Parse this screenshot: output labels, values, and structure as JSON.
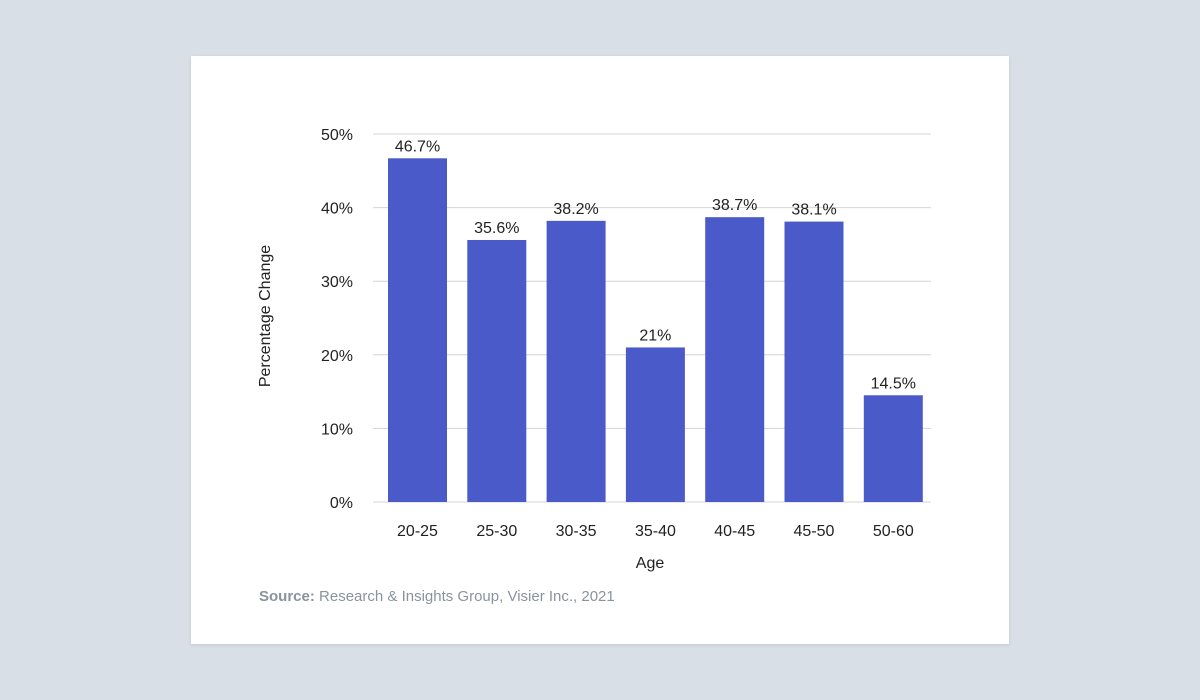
{
  "chart_data": {
    "type": "bar",
    "categories": [
      "20-25",
      "25-30",
      "30-35",
      "35-40",
      "40-45",
      "45-50",
      "50-60"
    ],
    "values": [
      46.7,
      35.6,
      38.2,
      21,
      38.7,
      38.1,
      14.5
    ],
    "data_labels": [
      "46.7%",
      "35.6%",
      "38.2%",
      "21%",
      "38.7%",
      "38.1%",
      "14.5%"
    ],
    "title": "",
    "xlabel": "Age",
    "ylabel": "Percentage Change",
    "ylim": [
      0,
      50
    ],
    "yticks": [
      0,
      10,
      20,
      30,
      40,
      50
    ],
    "ytick_labels": [
      "0%",
      "10%",
      "20%",
      "30%",
      "40%",
      "50%"
    ],
    "grid": true,
    "legend": "none",
    "bar_color": "#4a5bc9",
    "grid_color": "#d4d4d4"
  },
  "source": {
    "prefix": "Source:",
    "text": "Research & Insights Group, Visier Inc., 2021"
  }
}
